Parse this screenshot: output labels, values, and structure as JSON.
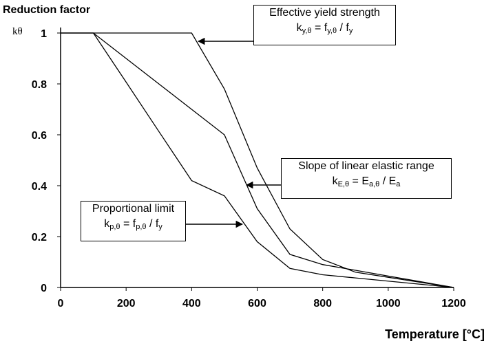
{
  "chart_data": {
    "type": "line",
    "title": "",
    "ylabel": "Reduction factor",
    "ylabel_symbol": "kθ",
    "xlabel": "Temperature [°C]",
    "xlim": [
      0,
      1200
    ],
    "ylim": [
      0,
      1
    ],
    "x_ticks": [
      "0",
      "200",
      "400",
      "600",
      "800",
      "1000",
      "1200"
    ],
    "y_ticks": [
      "0",
      "0.2",
      "0.4",
      "0.6",
      "0.8",
      "1"
    ],
    "grid": false,
    "series": [
      {
        "name": "Effective yield strength",
        "x": [
          0,
          400,
          500,
          600,
          700,
          800,
          900,
          1000,
          1100,
          1200
        ],
        "y": [
          1,
          1,
          0.78,
          0.47,
          0.23,
          0.11,
          0.06,
          0.04,
          0.02,
          0
        ]
      },
      {
        "name": "Slope of linear elastic range",
        "x": [
          0,
          100,
          200,
          300,
          400,
          500,
          600,
          700,
          800,
          900,
          1000,
          1100,
          1200
        ],
        "y": [
          1,
          1,
          0.9,
          0.8,
          0.7,
          0.6,
          0.31,
          0.13,
          0.09,
          0.0675,
          0.045,
          0.0225,
          0
        ]
      },
      {
        "name": "Proportional limit",
        "x": [
          0,
          100,
          200,
          300,
          400,
          500,
          600,
          700,
          800,
          900,
          1000,
          1100,
          1200
        ],
        "y": [
          1,
          1,
          0.807,
          0.613,
          0.42,
          0.36,
          0.18,
          0.075,
          0.05,
          0.0375,
          0.025,
          0.0125,
          0
        ]
      }
    ],
    "annotations": [
      {
        "id": "yield",
        "label": "Effective yield strength",
        "formula_lhs": "k",
        "formula_lhs_sub": "y,θ",
        "formula_mid": " = f",
        "formula_mid_sub": "y,θ",
        "formula_rhs": " / f",
        "formula_rhs_sub": "y"
      },
      {
        "id": "elastic",
        "label": "Slope of linear elastic range",
        "formula_lhs": "k",
        "formula_lhs_sub": "E,θ",
        "formula_mid": " = E",
        "formula_mid_sub": "a,θ",
        "formula_rhs": " / E",
        "formula_rhs_sub": "a"
      },
      {
        "id": "prop",
        "label": "Proportional limit",
        "formula_lhs": "k",
        "formula_lhs_sub": "p,θ",
        "formula_mid": " = f",
        "formula_mid_sub": "p,θ",
        "formula_rhs": " / f",
        "formula_rhs_sub": "y"
      }
    ]
  }
}
